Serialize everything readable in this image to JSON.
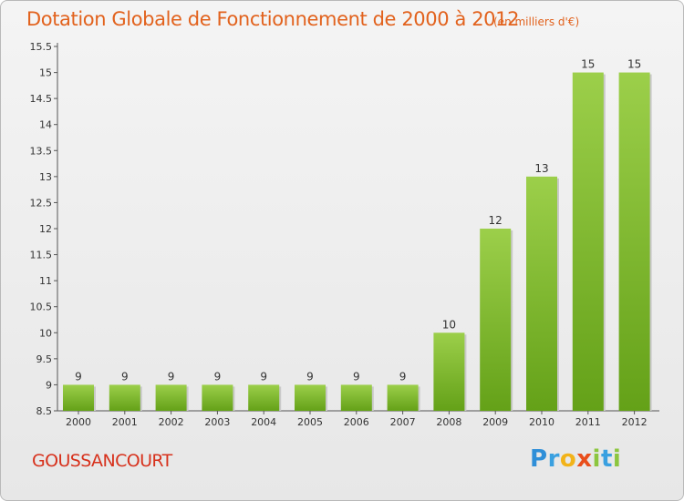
{
  "title": "Dotation Globale de Fonctionnement de 2000 à 2012",
  "subtitle": "(en milliers d'€)",
  "commune": "GOUSSANCOURT",
  "logo": {
    "p": "P",
    "r": "r",
    "o": "o",
    "x": "x",
    "i1": "i",
    "t": "t",
    "i2": "i"
  },
  "colors": {
    "bar_top": "#9ccf4a",
    "bar_bottom": "#64a118",
    "title": "#e2621d",
    "commune": "#d7311c"
  },
  "chart_data": {
    "type": "bar",
    "categories": [
      "2000",
      "2001",
      "2002",
      "2003",
      "2004",
      "2005",
      "2006",
      "2007",
      "2008",
      "2009",
      "2010",
      "2011",
      "2012"
    ],
    "values": [
      9,
      9,
      9,
      9,
      9,
      9,
      9,
      9,
      10,
      12,
      13,
      15,
      15
    ],
    "data_labels": [
      "9",
      "9",
      "9",
      "9",
      "9",
      "9",
      "9",
      "9",
      "10",
      "12",
      "13",
      "15",
      "15"
    ],
    "title": "Dotation Globale de Fonctionnement de 2000 à 2012",
    "subtitle": "(en milliers d'€)",
    "xlabel": "",
    "ylabel": "",
    "ylim": [
      8.5,
      15.5
    ],
    "yticks": [
      8.5,
      9,
      9.5,
      10,
      10.5,
      11,
      11.5,
      12,
      12.5,
      13,
      13.5,
      14,
      14.5,
      15,
      15.5
    ],
    "ytick_labels": [
      "8.5",
      "9",
      "9.5",
      "10",
      "10.5",
      "11",
      "11.5",
      "12",
      "12.5",
      "13",
      "13.5",
      "14",
      "14.5",
      "15",
      "15.5"
    ],
    "grid": false,
    "legend": "none"
  }
}
